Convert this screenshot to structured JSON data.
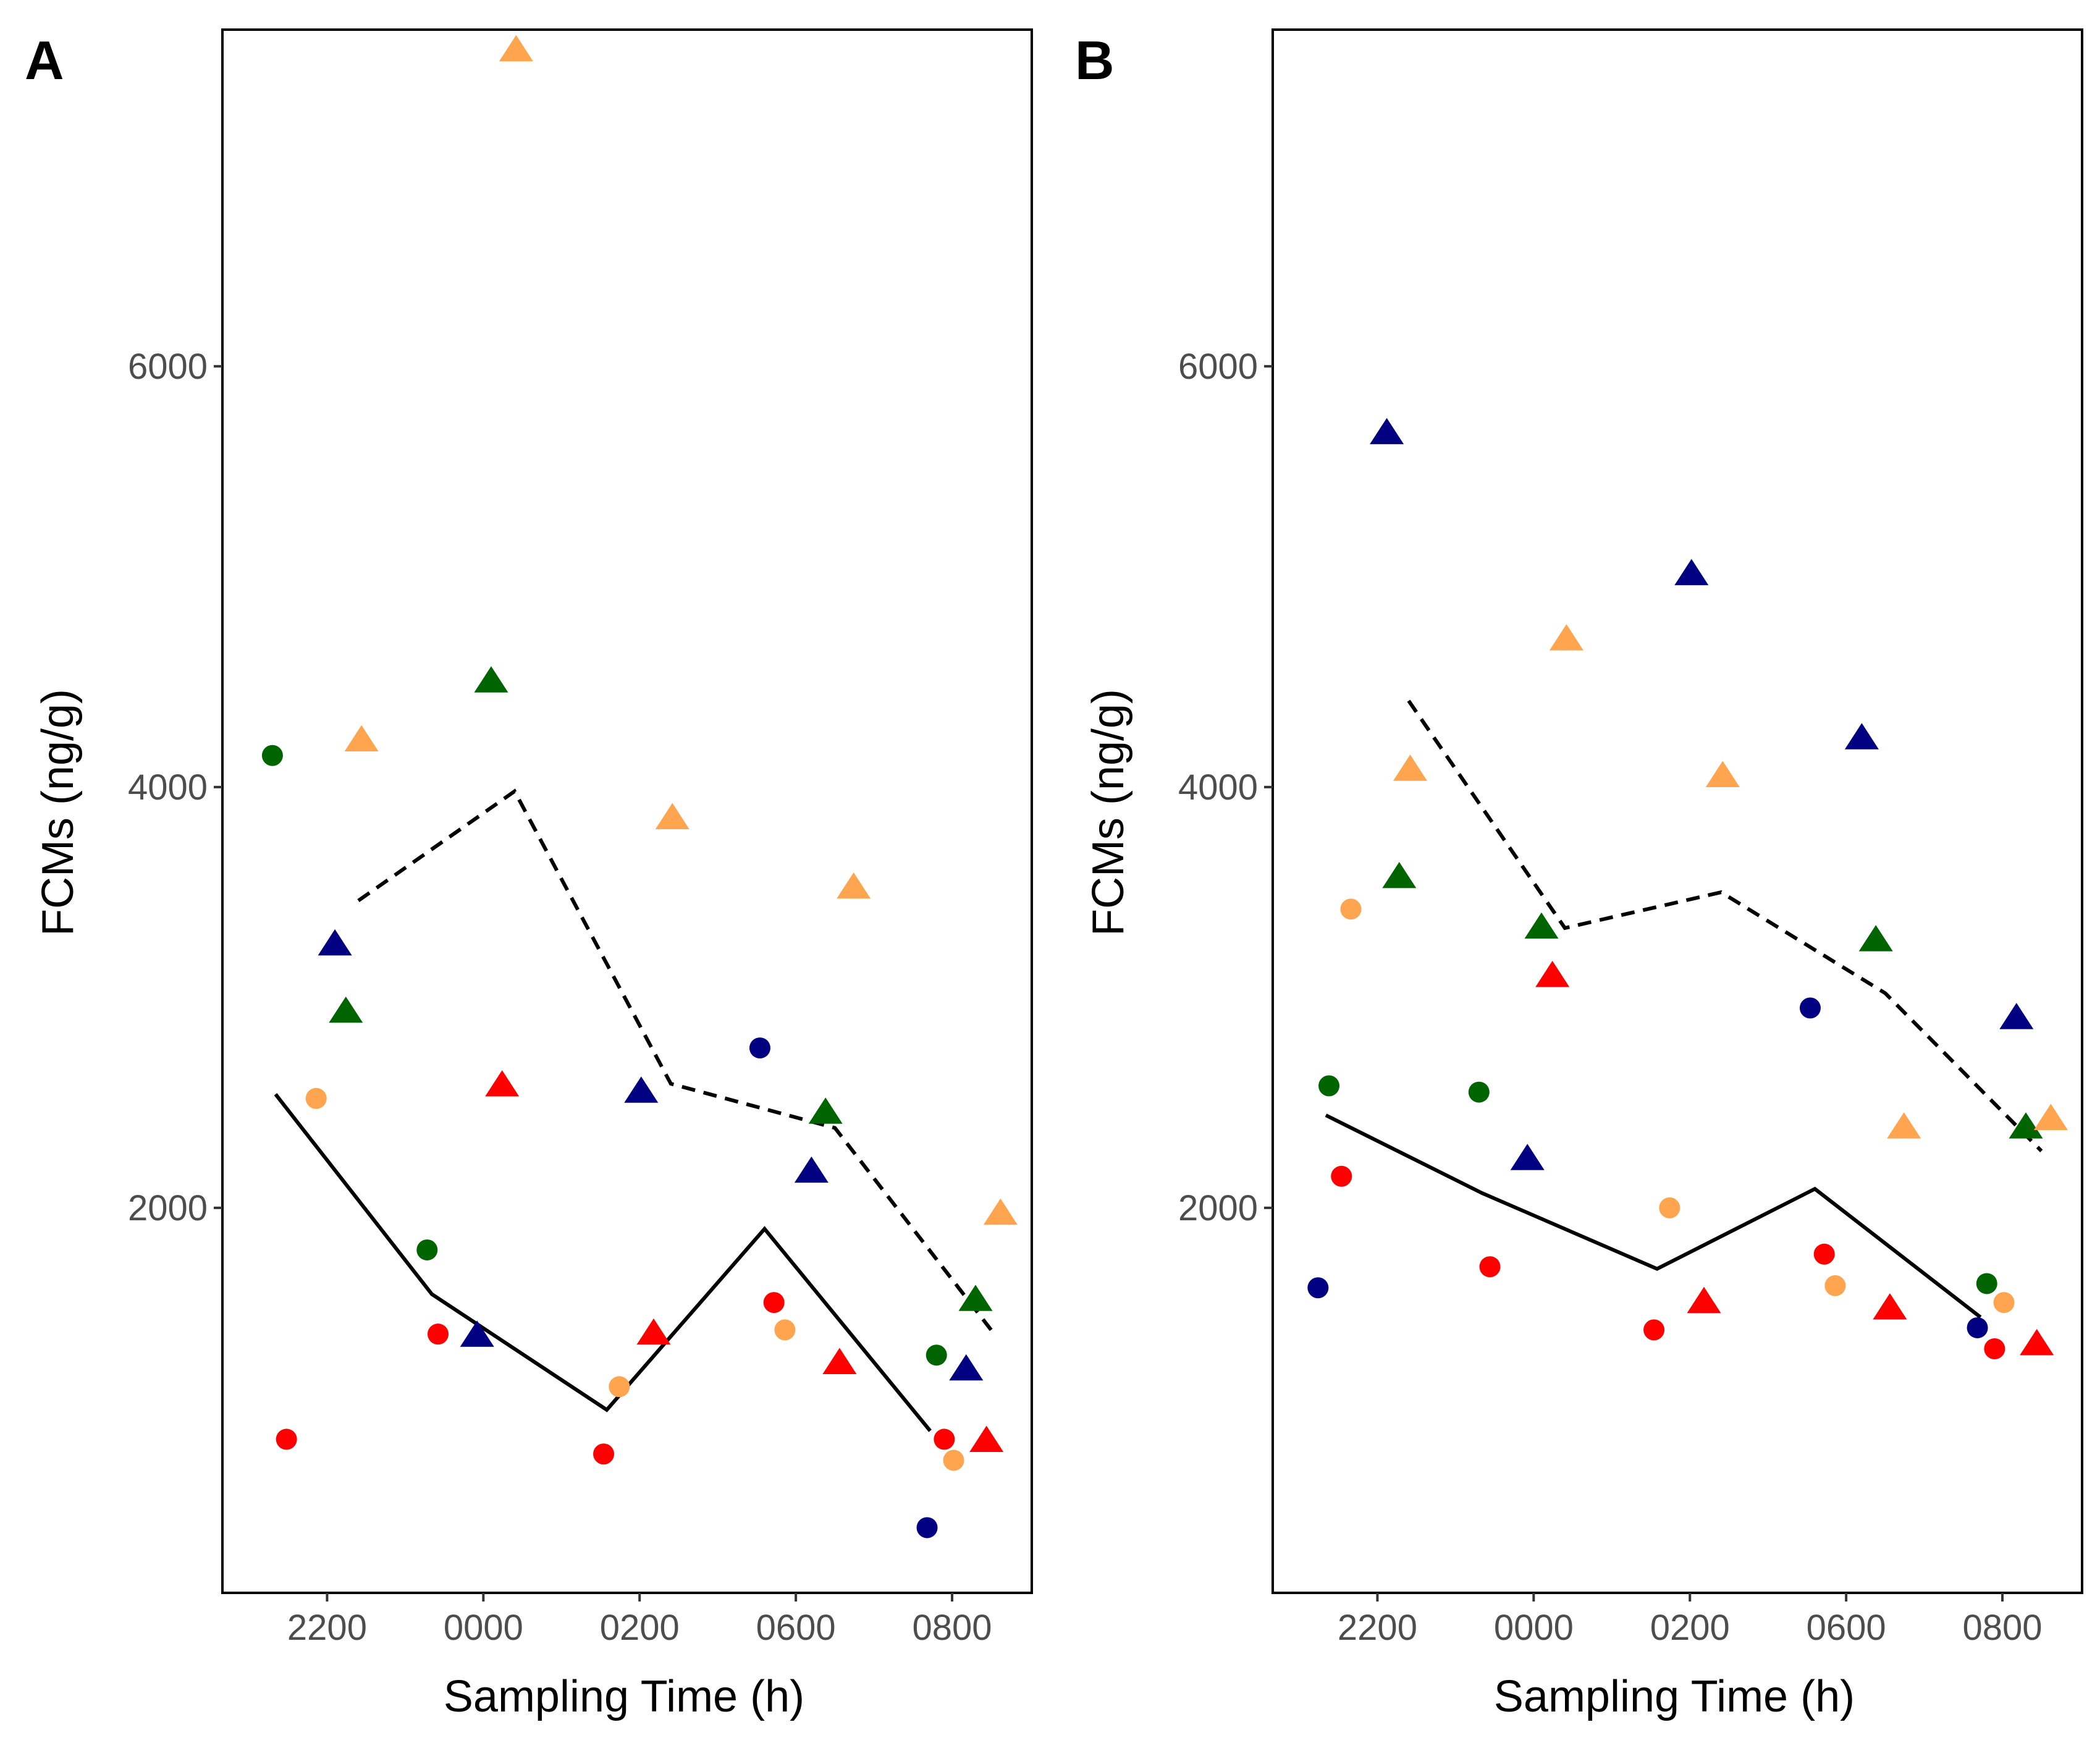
{
  "chart_data": [
    {
      "panel": "A",
      "type": "scatter",
      "xlabel": "Sampling Time (h)",
      "ylabel": "FCMs (ng/g)",
      "x_ticks": [
        {
          "label": "2200",
          "pos": 1
        },
        {
          "label": "0000",
          "pos": 2
        },
        {
          "label": "0200",
          "pos": 3
        },
        {
          "label": "0600",
          "pos": 4
        },
        {
          "label": "0800",
          "pos": 5
        }
      ],
      "y_ticks": [
        2000,
        4000,
        6000
      ],
      "xlim": [
        0.33,
        5.51
      ],
      "ylim": [
        170,
        7600
      ],
      "colors": {
        "green": "#006400",
        "navy": "#000080",
        "orange": "#FFA54F",
        "red": "#FF0000"
      },
      "points": [
        {
          "x": 0.65,
          "y": 4150,
          "shape": "circle",
          "color": "green"
        },
        {
          "x": 0.74,
          "y": 900,
          "shape": "circle",
          "color": "red"
        },
        {
          "x": 0.93,
          "y": 2520,
          "shape": "circle",
          "color": "orange"
        },
        {
          "x": 1.05,
          "y": 3250,
          "shape": "triangle",
          "color": "navy"
        },
        {
          "x": 1.12,
          "y": 2930,
          "shape": "triangle",
          "color": "green"
        },
        {
          "x": 1.22,
          "y": 4220,
          "shape": "triangle",
          "color": "orange"
        },
        {
          "x": 1.64,
          "y": 1800,
          "shape": "circle",
          "color": "green"
        },
        {
          "x": 1.71,
          "y": 1400,
          "shape": "circle",
          "color": "red"
        },
        {
          "x": 1.96,
          "y": 1390,
          "shape": "triangle",
          "color": "navy"
        },
        {
          "x": 2.05,
          "y": 4500,
          "shape": "triangle",
          "color": "green"
        },
        {
          "x": 2.12,
          "y": 2580,
          "shape": "triangle",
          "color": "red"
        },
        {
          "x": 2.21,
          "y": 7500,
          "shape": "triangle",
          "color": "orange"
        },
        {
          "x": 2.77,
          "y": 830,
          "shape": "circle",
          "color": "red"
        },
        {
          "x": 2.87,
          "y": 1150,
          "shape": "circle",
          "color": "orange"
        },
        {
          "x": 3.01,
          "y": 2550,
          "shape": "triangle",
          "color": "navy"
        },
        {
          "x": 3.09,
          "y": 1400,
          "shape": "triangle",
          "color": "red"
        },
        {
          "x": 3.21,
          "y": 3850,
          "shape": "triangle",
          "color": "orange"
        },
        {
          "x": 3.77,
          "y": 2760,
          "shape": "circle",
          "color": "navy"
        },
        {
          "x": 3.86,
          "y": 1550,
          "shape": "circle",
          "color": "red"
        },
        {
          "x": 3.93,
          "y": 1420,
          "shape": "circle",
          "color": "orange"
        },
        {
          "x": 4.1,
          "y": 2170,
          "shape": "triangle",
          "color": "navy"
        },
        {
          "x": 4.19,
          "y": 2450,
          "shape": "triangle",
          "color": "green"
        },
        {
          "x": 4.28,
          "y": 1260,
          "shape": "triangle",
          "color": "red"
        },
        {
          "x": 4.37,
          "y": 3520,
          "shape": "triangle",
          "color": "orange"
        },
        {
          "x": 4.84,
          "y": 480,
          "shape": "circle",
          "color": "navy"
        },
        {
          "x": 4.9,
          "y": 1300,
          "shape": "circle",
          "color": "green"
        },
        {
          "x": 4.95,
          "y": 900,
          "shape": "circle",
          "color": "red"
        },
        {
          "x": 5.01,
          "y": 800,
          "shape": "circle",
          "color": "orange"
        },
        {
          "x": 5.09,
          "y": 1230,
          "shape": "triangle",
          "color": "navy"
        },
        {
          "x": 5.15,
          "y": 1560,
          "shape": "triangle",
          "color": "green"
        },
        {
          "x": 5.22,
          "y": 890,
          "shape": "triangle",
          "color": "red"
        },
        {
          "x": 5.31,
          "y": 1970,
          "shape": "triangle",
          "color": "orange"
        }
      ],
      "series": [
        {
          "name": "solid",
          "style": "solid",
          "x": [
            0.67,
            1.67,
            2.79,
            3.8,
            4.86
          ],
          "y": [
            2540,
            1590,
            1040,
            1900,
            940
          ]
        },
        {
          "name": "dashed",
          "style": "dashed",
          "x": [
            1.2,
            2.2,
            3.2,
            4.25,
            5.25
          ],
          "y": [
            3460,
            3980,
            2590,
            2380,
            1420
          ]
        }
      ]
    },
    {
      "panel": "B",
      "type": "scatter",
      "xlabel": "Sampling Time (h)",
      "ylabel": "FCMs (ng/g)",
      "x_ticks": [
        {
          "label": "2200",
          "pos": 1
        },
        {
          "label": "0000",
          "pos": 2
        },
        {
          "label": "0200",
          "pos": 3
        },
        {
          "label": "0600",
          "pos": 4
        },
        {
          "label": "0800",
          "pos": 5
        }
      ],
      "y_ticks": [
        2000,
        4000,
        6000
      ],
      "xlim": [
        0.33,
        5.51
      ],
      "ylim": [
        170,
        7600
      ],
      "colors": {
        "green": "#006400",
        "navy": "#000080",
        "orange": "#FFA54F",
        "red": "#FF0000"
      },
      "points": [
        {
          "x": 0.62,
          "y": 1620,
          "shape": "circle",
          "color": "navy"
        },
        {
          "x": 0.69,
          "y": 2580,
          "shape": "circle",
          "color": "green"
        },
        {
          "x": 0.77,
          "y": 2150,
          "shape": "circle",
          "color": "red"
        },
        {
          "x": 0.83,
          "y": 3420,
          "shape": "circle",
          "color": "orange"
        },
        {
          "x": 1.06,
          "y": 5680,
          "shape": "triangle",
          "color": "navy"
        },
        {
          "x": 1.14,
          "y": 3570,
          "shape": "triangle",
          "color": "green"
        },
        {
          "x": 1.21,
          "y": 4080,
          "shape": "triangle",
          "color": "orange"
        },
        {
          "x": 1.65,
          "y": 2550,
          "shape": "circle",
          "color": "green"
        },
        {
          "x": 1.72,
          "y": 1720,
          "shape": "circle",
          "color": "red"
        },
        {
          "x": 1.96,
          "y": 2230,
          "shape": "triangle",
          "color": "navy"
        },
        {
          "x": 2.05,
          "y": 3330,
          "shape": "triangle",
          "color": "green"
        },
        {
          "x": 2.12,
          "y": 3100,
          "shape": "triangle",
          "color": "red"
        },
        {
          "x": 2.21,
          "y": 4700,
          "shape": "triangle",
          "color": "orange"
        },
        {
          "x": 2.77,
          "y": 1420,
          "shape": "circle",
          "color": "red"
        },
        {
          "x": 2.87,
          "y": 2000,
          "shape": "circle",
          "color": "orange"
        },
        {
          "x": 3.01,
          "y": 5010,
          "shape": "triangle",
          "color": "navy"
        },
        {
          "x": 3.09,
          "y": 1550,
          "shape": "triangle",
          "color": "red"
        },
        {
          "x": 3.21,
          "y": 4050,
          "shape": "triangle",
          "color": "orange"
        },
        {
          "x": 3.77,
          "y": 2950,
          "shape": "circle",
          "color": "navy"
        },
        {
          "x": 3.86,
          "y": 1780,
          "shape": "circle",
          "color": "red"
        },
        {
          "x": 3.93,
          "y": 1630,
          "shape": "circle",
          "color": "orange"
        },
        {
          "x": 4.1,
          "y": 4230,
          "shape": "triangle",
          "color": "navy"
        },
        {
          "x": 4.19,
          "y": 3270,
          "shape": "triangle",
          "color": "green"
        },
        {
          "x": 4.28,
          "y": 1520,
          "shape": "triangle",
          "color": "red"
        },
        {
          "x": 4.37,
          "y": 2380,
          "shape": "triangle",
          "color": "orange"
        },
        {
          "x": 4.84,
          "y": 1430,
          "shape": "circle",
          "color": "navy"
        },
        {
          "x": 4.9,
          "y": 1640,
          "shape": "circle",
          "color": "green"
        },
        {
          "x": 4.95,
          "y": 1330,
          "shape": "circle",
          "color": "red"
        },
        {
          "x": 5.01,
          "y": 1550,
          "shape": "circle",
          "color": "orange"
        },
        {
          "x": 5.09,
          "y": 2900,
          "shape": "triangle",
          "color": "navy"
        },
        {
          "x": 5.15,
          "y": 2380,
          "shape": "triangle",
          "color": "green"
        },
        {
          "x": 5.22,
          "y": 1350,
          "shape": "triangle",
          "color": "red"
        },
        {
          "x": 5.31,
          "y": 2420,
          "shape": "triangle",
          "color": "orange"
        }
      ],
      "series": [
        {
          "name": "solid",
          "style": "solid",
          "x": [
            0.67,
            1.67,
            2.79,
            3.8,
            4.86
          ],
          "y": [
            2440,
            2070,
            1710,
            2090,
            1480
          ]
        },
        {
          "name": "dashed",
          "style": "dashed",
          "x": [
            1.2,
            2.2,
            3.2,
            4.25,
            5.25
          ],
          "y": [
            4410,
            3330,
            3500,
            3020,
            2270
          ]
        }
      ]
    }
  ]
}
